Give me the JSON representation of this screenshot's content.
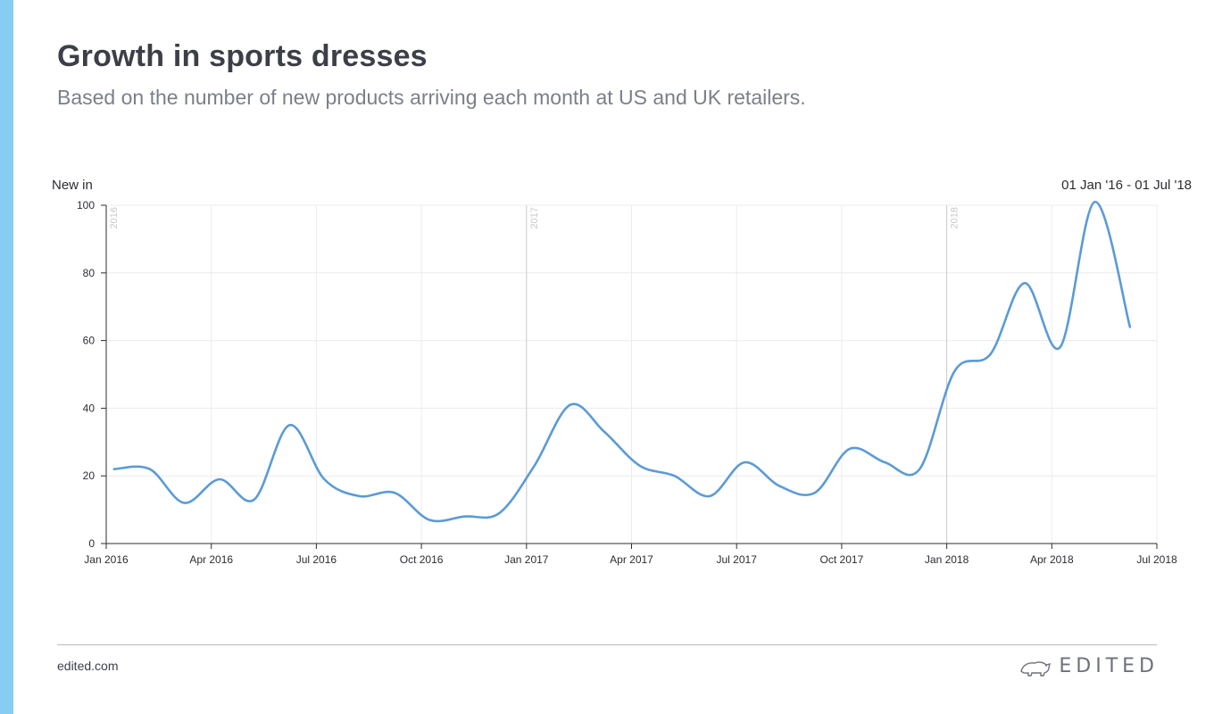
{
  "page": {
    "title": "Growth in sports dresses",
    "subtitle": "Based on the number of new products arriving each month at US and UK retailers.",
    "footer_url": "edited.com",
    "brand": "EDITED",
    "accent_color": "#85cdf1"
  },
  "chart_data": {
    "type": "line",
    "ylabel": "New in",
    "date_range": "01 Jan '16 - 01 Jul '18",
    "ylim": [
      0,
      100
    ],
    "yticks": [
      0,
      20,
      40,
      60,
      80,
      100
    ],
    "xlim": [
      "2016-01",
      "2018-07"
    ],
    "xticks": [
      {
        "label": "Jan 2016",
        "month": "2016-01"
      },
      {
        "label": "Apr 2016",
        "month": "2016-04"
      },
      {
        "label": "Jul 2016",
        "month": "2016-07"
      },
      {
        "label": "Oct 2016",
        "month": "2016-10"
      },
      {
        "label": "Jan 2017",
        "month": "2017-01"
      },
      {
        "label": "Apr 2017",
        "month": "2017-04"
      },
      {
        "label": "Jul 2017",
        "month": "2017-07"
      },
      {
        "label": "Oct 2017",
        "month": "2017-10"
      },
      {
        "label": "Jan 2018",
        "month": "2018-01"
      },
      {
        "label": "Apr 2018",
        "month": "2018-04"
      },
      {
        "label": "Jul 2018",
        "month": "2018-07"
      }
    ],
    "year_markers": [
      {
        "label": "2016",
        "month": "2016-01"
      },
      {
        "label": "2017",
        "month": "2017-01"
      },
      {
        "label": "2018",
        "month": "2018-01"
      }
    ],
    "grid": true,
    "line_color": "#5b9bd5",
    "series": [
      {
        "x": [
          "2016-01-08",
          "2016-02-08",
          "2016-03-08",
          "2016-04-08",
          "2016-05-08",
          "2016-06-08",
          "2016-07-08",
          "2016-08-08",
          "2016-09-08",
          "2016-10-08",
          "2016-11-08",
          "2016-12-08",
          "2017-01-08",
          "2017-02-08",
          "2017-03-08",
          "2017-04-08",
          "2017-05-08",
          "2017-06-08",
          "2017-07-08",
          "2017-08-08",
          "2017-09-08",
          "2017-10-08",
          "2017-11-08",
          "2017-12-08",
          "2018-01-08",
          "2018-02-08",
          "2018-03-08",
          "2018-04-08",
          "2018-05-08",
          "2018-06-08"
        ],
        "y": [
          22,
          22,
          12,
          19,
          13,
          35,
          19,
          14,
          15,
          7,
          8,
          9,
          23,
          41,
          33,
          23,
          20,
          14,
          24,
          17,
          15,
          28,
          24,
          22,
          51,
          56,
          77,
          58,
          101,
          64
        ]
      }
    ]
  }
}
